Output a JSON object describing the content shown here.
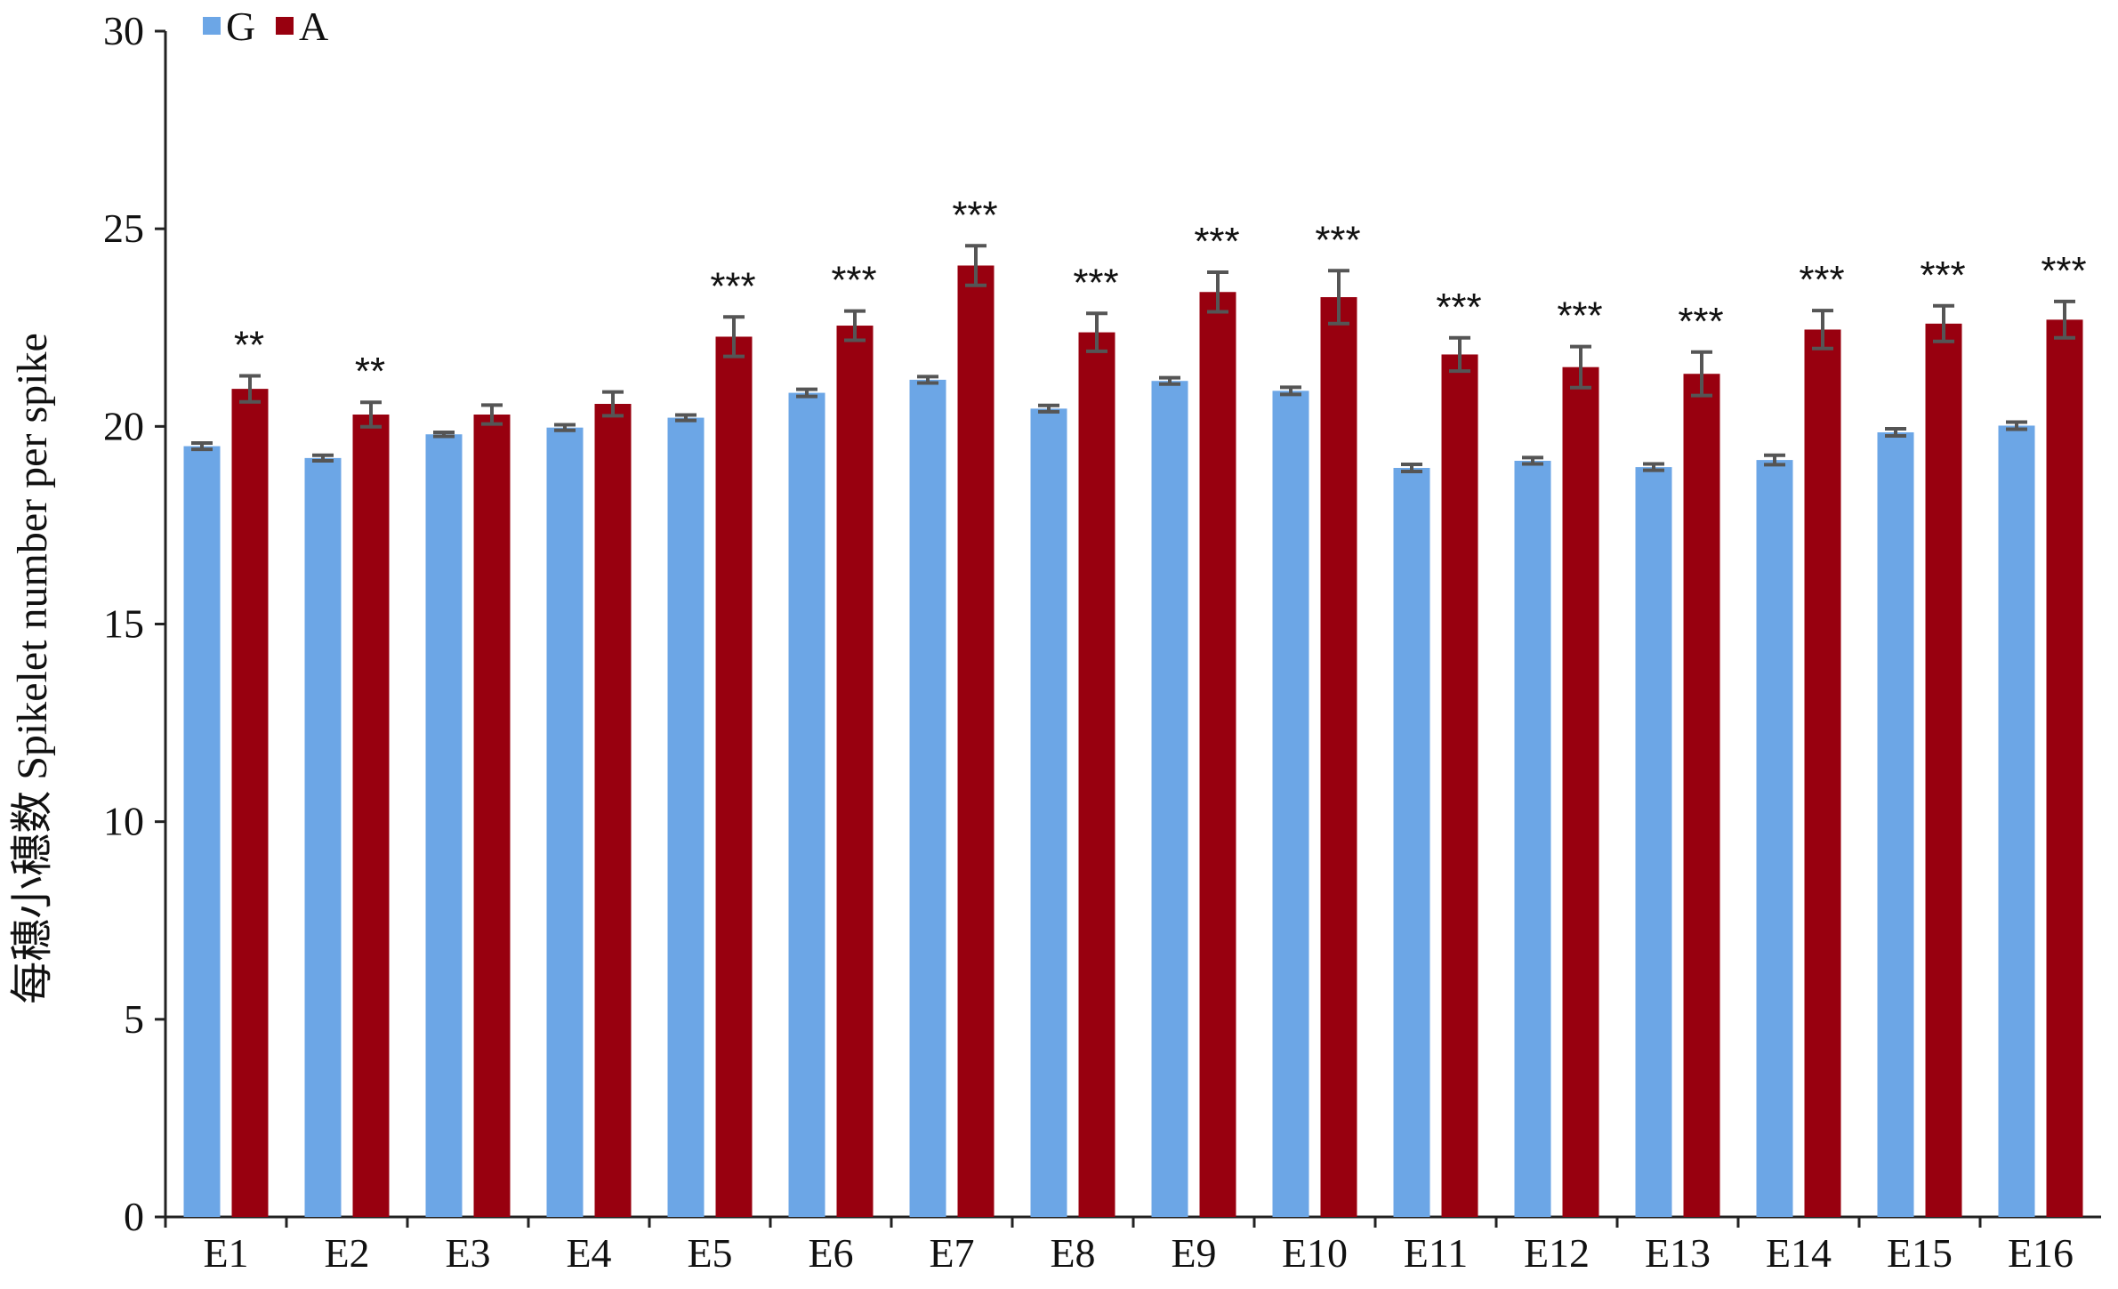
{
  "chart_data": {
    "type": "bar",
    "title": "",
    "xlabel": "",
    "ylabel": "每穗小穗数  Spikelet number per spike",
    "ylim": [
      0,
      30
    ],
    "yticks": [
      0,
      5,
      10,
      15,
      20,
      25,
      30
    ],
    "grid": false,
    "legend_position": "top-left",
    "categories": [
      "E1",
      "E2",
      "E3",
      "E4",
      "E5",
      "E6",
      "E7",
      "E8",
      "E9",
      "E10",
      "E11",
      "E12",
      "E13",
      "E14",
      "E15",
      "E16"
    ],
    "series": [
      {
        "name": "G",
        "color": "#6CA6E6",
        "values": [
          19.5,
          19.2,
          19.8,
          19.97,
          20.22,
          20.85,
          21.18,
          20.45,
          21.15,
          20.9,
          18.95,
          19.13,
          18.97,
          19.15,
          19.85,
          20.02
        ],
        "errors": [
          0.08,
          0.07,
          0.05,
          0.07,
          0.07,
          0.09,
          0.08,
          0.08,
          0.08,
          0.09,
          0.09,
          0.08,
          0.08,
          0.12,
          0.09,
          0.09
        ]
      },
      {
        "name": "A",
        "color": "#98000F",
        "values": [
          20.95,
          20.3,
          20.3,
          20.57,
          22.27,
          22.55,
          24.07,
          22.38,
          23.4,
          23.27,
          21.82,
          21.5,
          21.33,
          22.45,
          22.6,
          22.7
        ],
        "errors": [
          0.33,
          0.31,
          0.24,
          0.3,
          0.5,
          0.37,
          0.5,
          0.48,
          0.5,
          0.67,
          0.42,
          0.52,
          0.55,
          0.48,
          0.45,
          0.46
        ]
      }
    ],
    "significance": [
      "**",
      "**",
      "",
      "",
      "***",
      "***",
      "***",
      "***",
      "***",
      "***",
      "***",
      "***",
      "***",
      "***",
      "***",
      "***"
    ],
    "error_bar_color": "#555555",
    "axis_color": "#222222"
  }
}
